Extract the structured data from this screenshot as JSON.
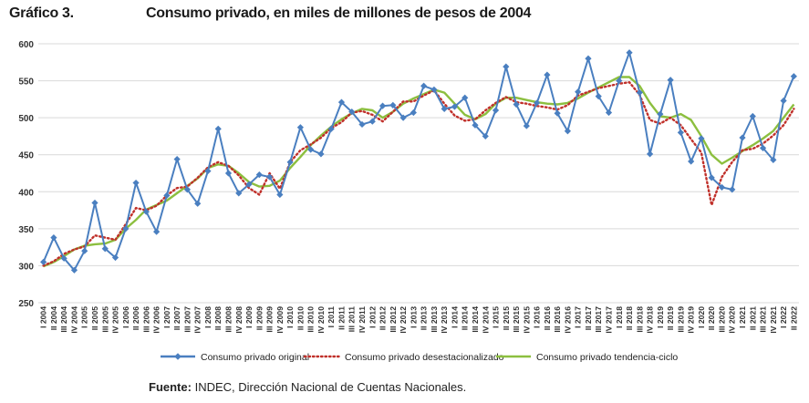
{
  "header": {
    "number": "Gráfico 3.",
    "title": "Consumo privado, en miles de millones de pesos de 2004"
  },
  "source": {
    "label": "Fuente:",
    "text": "INDEC, Dirección Nacional de Cuentas Nacionales."
  },
  "chart_data": {
    "type": "line",
    "ylim": [
      250,
      600
    ],
    "y_ticks": [
      250,
      300,
      350,
      400,
      450,
      500,
      550,
      600
    ],
    "grid": true,
    "legend_position": "bottom",
    "categories": [
      "I 2004",
      "II 2004",
      "III 2004",
      "IV 2004",
      "I 2005",
      "II 2005",
      "III 2005",
      "IV 2005",
      "I 2006",
      "II 2006",
      "III 2006",
      "IV 2006",
      "I 2007",
      "II 2007",
      "III 2007",
      "IV 2007",
      "I 2008",
      "II 2008",
      "III 2008",
      "IV 2008",
      "I 2009",
      "II 2009",
      "III 2009",
      "IV 2009",
      "I 2010",
      "II 2010",
      "III 2010",
      "IV 2010",
      "I 2011",
      "II 2011",
      "III 2011",
      "IV 2011",
      "I 2012",
      "II 2012",
      "III 2012",
      "IV 2012",
      "I 2013",
      "II 2013",
      "III 2013",
      "IV 2013",
      "I 2014",
      "II 2014",
      "III 2014",
      "IV 2014",
      "I 2015",
      "II 2015",
      "III 2015",
      "IV 2015",
      "I 2016",
      "II 2016",
      "III 2016",
      "IV 2016",
      "I 2017",
      "II 2017",
      "III 2017",
      "IV 2017",
      "I 2018",
      "II 2018",
      "III 2018",
      "IV 2018",
      "I 2019",
      "II 2019",
      "III 2019",
      "IV 2019",
      "I 2020",
      "II 2020",
      "III 2020",
      "IV 2020",
      "I 2021",
      "II 2021",
      "III 2021",
      "IV 2021",
      "I 2022",
      "II 2022"
    ],
    "series": [
      {
        "name": "Consumo privado original",
        "color": "#4a7fc0",
        "style": "solid-diamond",
        "values": [
          305,
          338,
          310,
          294,
          320,
          385,
          323,
          311,
          350,
          412,
          373,
          346,
          395,
          444,
          403,
          384,
          428,
          485,
          425,
          398,
          410,
          423,
          420,
          396,
          440,
          487,
          457,
          451,
          485,
          521,
          508,
          491,
          495,
          516,
          517,
          500,
          507,
          543,
          538,
          512,
          515,
          527,
          490,
          475,
          510,
          569,
          518,
          489,
          520,
          558,
          506,
          482,
          535,
          580,
          529,
          507,
          550,
          588,
          534,
          451,
          505,
          551,
          480,
          441,
          472,
          419,
          406,
          403,
          473,
          502,
          459,
          443,
          523,
          556
        ]
      },
      {
        "name": "Consumo privado desestacionalizado",
        "color": "#c0302a",
        "style": "dotted",
        "values": [
          300,
          306,
          316,
          322,
          326,
          341,
          338,
          335,
          356,
          378,
          375,
          381,
          395,
          405,
          407,
          419,
          433,
          440,
          435,
          422,
          405,
          396,
          425,
          404,
          440,
          456,
          464,
          473,
          486,
          494,
          507,
          509,
          504,
          495,
          508,
          522,
          522,
          530,
          537,
          519,
          503,
          496,
          498,
          510,
          520,
          528,
          521,
          519,
          516,
          514,
          511,
          517,
          530,
          535,
          540,
          543,
          546,
          548,
          531,
          497,
          492,
          500,
          490,
          471,
          453,
          382,
          420,
          440,
          456,
          458,
          465,
          476,
          490,
          512
        ]
      },
      {
        "name": "Consumo privado tendencia-ciclo",
        "color": "#8cbf3f",
        "style": "solid",
        "values": [
          299,
          305,
          313,
          322,
          327,
          329,
          330,
          335,
          350,
          362,
          376,
          382,
          388,
          398,
          408,
          418,
          432,
          437,
          435,
          425,
          413,
          407,
          408,
          415,
          432,
          447,
          463,
          476,
          488,
          498,
          506,
          512,
          510,
          500,
          508,
          519,
          526,
          532,
          538,
          534,
          519,
          504,
          498,
          505,
          519,
          527,
          527,
          524,
          521,
          519,
          518,
          520,
          526,
          534,
          541,
          548,
          555,
          555,
          543,
          520,
          502,
          500,
          505,
          497,
          475,
          450,
          438,
          446,
          455,
          463,
          472,
          482,
          500,
          518
        ]
      }
    ]
  }
}
